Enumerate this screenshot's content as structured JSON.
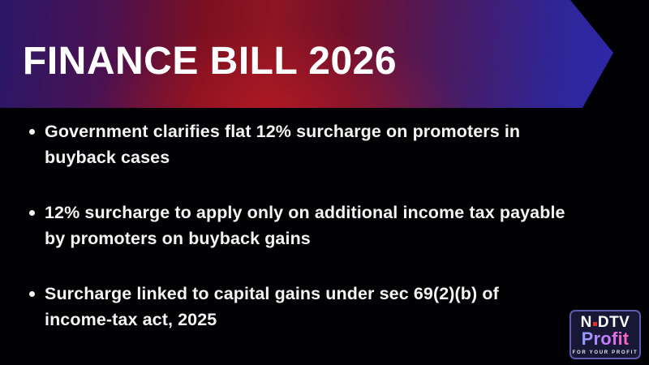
{
  "header": {
    "title": "FINANCE BILL 2026"
  },
  "bullets": [
    {
      "lines": [
        "Government clarifies flat 12% surcharge on promoters in",
        "buyback cases"
      ]
    },
    {
      "lines": [
        "12% surcharge to apply only on additional income tax payable",
        "by promoters on buyback gains"
      ]
    },
    {
      "lines": [
        "Surcharge linked to capital gains under sec 69(2)(b) of",
        "income-tax act, 2025"
      ]
    }
  ],
  "logo": {
    "brand_n": "N",
    "brand_dtv": "DTV",
    "brand_profit": "Profit",
    "tagline": "FOR YOUR PROFIT"
  },
  "colors": {
    "background": "#000000",
    "banner_indigo_left": "#2b1768",
    "banner_red_center": "#8e1522",
    "banner_blue_right": "#2d28a8",
    "title_text": "#ffffff",
    "bullet_text": "#f4f4f4",
    "logo_box_bg": "#181836",
    "logo_border": "#5c5cb0",
    "logo_red_dot": "#e03228",
    "profit_gradient_start": "#8f9bff",
    "profit_gradient_end": "#ff5fb4"
  }
}
